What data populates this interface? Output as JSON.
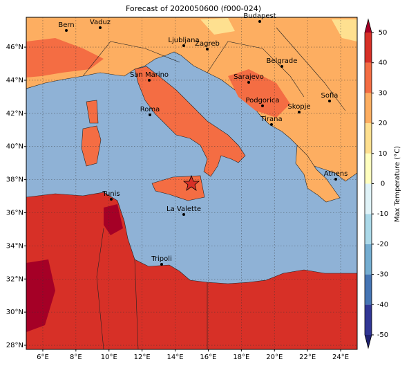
{
  "title": "Forecast of 2020050600 (f000-024)",
  "map": {
    "lon_range": [
      5,
      25
    ],
    "lat_range": [
      27.75,
      47.8
    ],
    "lon_ticks": [
      {
        "value": 6,
        "label": "6°E"
      },
      {
        "value": 8,
        "label": "8°E"
      },
      {
        "value": 10,
        "label": "10°E"
      },
      {
        "value": 12,
        "label": "12°E"
      },
      {
        "value": 14,
        "label": "14°E"
      },
      {
        "value": 16,
        "label": "16°E"
      },
      {
        "value": 18,
        "label": "18°E"
      },
      {
        "value": 20,
        "label": "20°E"
      },
      {
        "value": 22,
        "label": "22°E"
      },
      {
        "value": 24,
        "label": "24°E"
      }
    ],
    "lat_ticks": [
      {
        "value": 28,
        "label": "28°N"
      },
      {
        "value": 30,
        "label": "30°N"
      },
      {
        "value": 32,
        "label": "32°N"
      },
      {
        "value": 34,
        "label": "34°N"
      },
      {
        "value": 36,
        "label": "36°N"
      },
      {
        "value": 38,
        "label": "38°N"
      },
      {
        "value": 40,
        "label": "40°N"
      },
      {
        "value": 42,
        "label": "42°N"
      },
      {
        "value": 44,
        "label": "44°N"
      },
      {
        "value": 46,
        "label": "46°N"
      }
    ],
    "grid": true,
    "cities": [
      "Bern",
      "Vaduz",
      "Budapest",
      "Ljubljana",
      "Zagreb",
      "San Marino",
      "Belgrade",
      "Sarajevo",
      "Sofia",
      "Roma",
      "Podgorica",
      "Skopje",
      "Tirana",
      "Athens",
      "Tunis",
      "La Valette",
      "Tripoli"
    ]
  },
  "colorbar": {
    "label": "Max Temperature (°C)",
    "range": [
      -50,
      50
    ],
    "ticks": [
      -50,
      -40,
      -30,
      -20,
      -10,
      0,
      10,
      20,
      30,
      40,
      50
    ],
    "colors": [
      "#313695",
      "#4575b4",
      "#74add1",
      "#abd9e9",
      "#e0f3f8",
      "#ffffbf",
      "#fee090",
      "#fdae61",
      "#f46d43",
      "#d73027"
    ],
    "under_color": "#1f2170",
    "over_color": "#a50026"
  }
}
